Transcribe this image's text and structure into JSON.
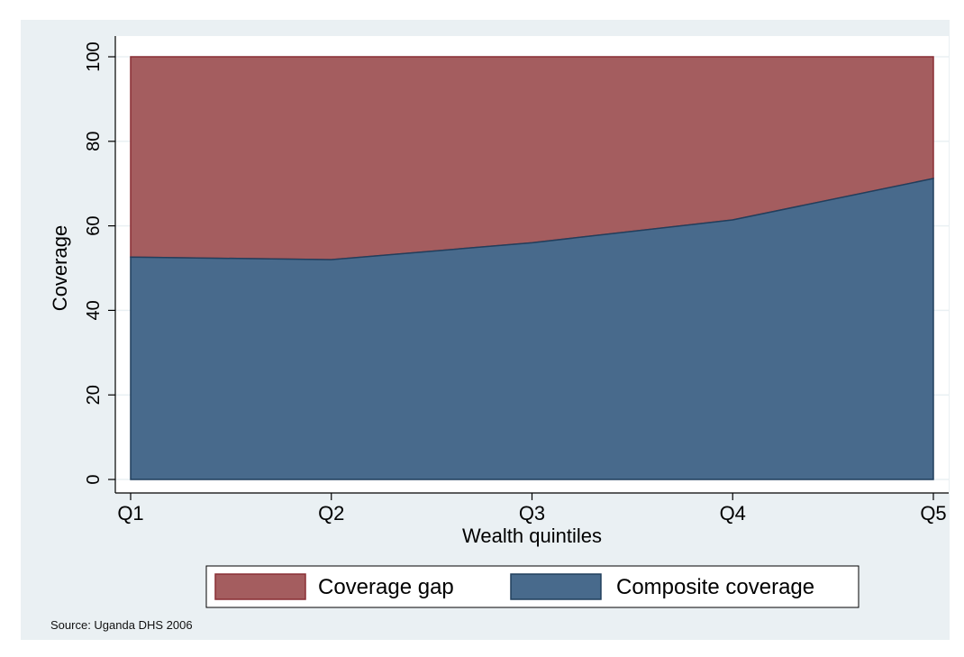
{
  "chart_data": {
    "type": "area",
    "stacked": true,
    "categories": [
      "Q1",
      "Q2",
      "Q3",
      "Q4",
      "Q5"
    ],
    "series": [
      {
        "name": "Composite coverage",
        "values": [
          52.6,
          52.0,
          56.0,
          61.4,
          71.2
        ],
        "color": "#486a8c"
      },
      {
        "name": "Coverage gap",
        "values": [
          47.4,
          48.0,
          44.0,
          38.6,
          28.8
        ],
        "color": "#a45d5f"
      }
    ],
    "xlabel": "Wealth quintiles",
    "ylabel": "Coverage",
    "ylim": [
      0,
      100
    ],
    "yticks": [
      "0",
      "20",
      "40",
      "60",
      "80",
      "100"
    ],
    "legend": {
      "position": "bottom",
      "items": [
        {
          "label": "Coverage gap",
          "color": "#a45d5f",
          "border": "#8a2f35"
        },
        {
          "label": "Composite coverage",
          "color": "#486a8c",
          "border": "#213f5d"
        }
      ]
    },
    "grid": true
  },
  "source": "Source: Uganda DHS 2006"
}
